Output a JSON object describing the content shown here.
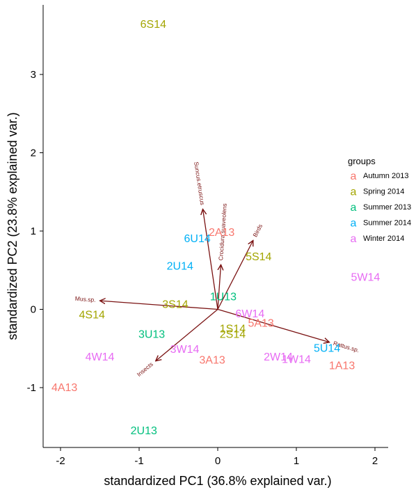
{
  "chart_data": {
    "type": "scatter",
    "subtype": "pca-biplot",
    "title": "",
    "xlabel": "standardized PC1 (36.8% explained var.)",
    "ylabel": "standardized PC2 (23.8% explained var.)",
    "xlim": [
      -2.2,
      2.2
    ],
    "ylim": [
      -1.75,
      3.95
    ],
    "xticks": [
      -2,
      -1,
      0,
      1,
      2
    ],
    "yticks": [
      -1,
      0,
      1,
      2,
      3
    ],
    "grid": false,
    "legend": {
      "title": "groups",
      "placement": "right",
      "key_glyph": "a",
      "items": [
        {
          "name": "Autumn 2013",
          "color": "#F8766D"
        },
        {
          "name": "Spring 2014",
          "color": "#A3A500"
        },
        {
          "name": "Summer 2013",
          "color": "#00BF7D"
        },
        {
          "name": "Summer 2014",
          "color": "#00B0F6"
        },
        {
          "name": "Winter 2014",
          "color": "#E76BF3"
        }
      ]
    },
    "vector_color": "#7a1212",
    "points": [
      {
        "label": "6S14",
        "group": "Spring 2014",
        "x": -0.82,
        "y": 3.65
      },
      {
        "label": "2A13",
        "group": "Autumn 2013",
        "x": 0.05,
        "y": 0.99
      },
      {
        "label": "6U14",
        "group": "Summer 2014",
        "x": -0.26,
        "y": 0.91
      },
      {
        "label": "5S14",
        "group": "Spring 2014",
        "x": 0.52,
        "y": 0.68
      },
      {
        "label": "5W14",
        "group": "Winter 2014",
        "x": 1.88,
        "y": 0.42
      },
      {
        "label": "2U14",
        "group": "Summer 2014",
        "x": -0.48,
        "y": 0.56
      },
      {
        "label": "1U13",
        "group": "Summer 2013",
        "x": 0.07,
        "y": 0.17
      },
      {
        "label": "3S14",
        "group": "Spring 2014",
        "x": -0.54,
        "y": 0.07
      },
      {
        "label": "4S14",
        "group": "Spring 2014",
        "x": -1.6,
        "y": -0.06
      },
      {
        "label": "6W14",
        "group": "Winter 2014",
        "x": 0.41,
        "y": -0.05
      },
      {
        "label": "5A13",
        "group": "Autumn 2013",
        "x": 0.55,
        "y": -0.17
      },
      {
        "label": "1S14",
        "group": "Spring 2014",
        "x": 0.19,
        "y": -0.24
      },
      {
        "label": "2S14",
        "group": "Spring 2014",
        "x": 0.19,
        "y": -0.31
      },
      {
        "label": "3U13",
        "group": "Summer 2013",
        "x": -0.84,
        "y": -0.31
      },
      {
        "label": "5U14",
        "group": "Summer 2014",
        "x": 1.39,
        "y": -0.49
      },
      {
        "label": "3W14",
        "group": "Winter 2014",
        "x": -0.42,
        "y": -0.5
      },
      {
        "label": "2W14",
        "group": "Winter 2014",
        "x": 0.77,
        "y": -0.6
      },
      {
        "label": "1W14",
        "group": "Winter 2014",
        "x": 1.0,
        "y": -0.63
      },
      {
        "label": "4W14",
        "group": "Winter 2014",
        "x": -1.5,
        "y": -0.6
      },
      {
        "label": "3A13",
        "group": "Autumn 2013",
        "x": -0.07,
        "y": -0.64
      },
      {
        "label": "1A13",
        "group": "Autumn 2013",
        "x": 1.58,
        "y": -0.71
      },
      {
        "label": "4A13",
        "group": "Autumn 2013",
        "x": -1.95,
        "y": -0.99
      },
      {
        "label": "2U13",
        "group": "Summer 2013",
        "x": -0.94,
        "y": -1.54
      }
    ],
    "vectors": [
      {
        "name": "Suncus.etruscus",
        "x": -0.19,
        "y": 1.28
      },
      {
        "name": "Crocidura.suaveolens",
        "x": 0.04,
        "y": 0.57
      },
      {
        "name": "Birds",
        "x": 0.45,
        "y": 0.88
      },
      {
        "name": "Mus.sp.",
        "x": -1.5,
        "y": 0.11
      },
      {
        "name": "Rattus.sp.",
        "x": 1.42,
        "y": -0.42
      },
      {
        "name": "Insects",
        "x": -0.79,
        "y": -0.66
      }
    ]
  }
}
